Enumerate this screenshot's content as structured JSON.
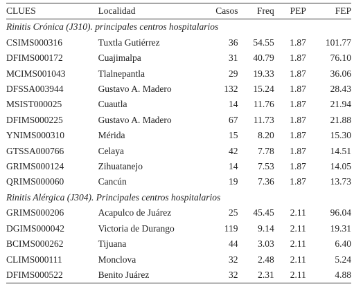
{
  "headers": {
    "clues": "CLUES",
    "localidad": "Localidad",
    "casos": "Casos",
    "freq": "Freq",
    "pep": "PEP",
    "fep": "FEP"
  },
  "sections": [
    {
      "title": "Rinitis Crónica (J310). principales centros hospitalarios",
      "rows": [
        {
          "clues": "CSIMS000316",
          "localidad": "Tuxtla Gutiérrez",
          "casos": "36",
          "freq": "54.55",
          "pep": "1.87",
          "fep": "101.77"
        },
        {
          "clues": "DFIMS000172",
          "localidad": "Cuajimalpa",
          "casos": "31",
          "freq": "40.79",
          "pep": "1.87",
          "fep": "76.10"
        },
        {
          "clues": "MCIMS001043",
          "localidad": "Tlalnepantla",
          "casos": "29",
          "freq": "19.33",
          "pep": "1.87",
          "fep": "36.06"
        },
        {
          "clues": "DFSSA003944",
          "localidad": "Gustavo A. Madero",
          "casos": "132",
          "freq": "15.24",
          "pep": "1.87",
          "fep": "28.43"
        },
        {
          "clues": "MSIST000025",
          "localidad": "Cuautla",
          "casos": "14",
          "freq": "11.76",
          "pep": "1.87",
          "fep": "21.94"
        },
        {
          "clues": "DFIMS000225",
          "localidad": "Gustavo A. Madero",
          "casos": "67",
          "freq": "11.73",
          "pep": "1.87",
          "fep": "21.88"
        },
        {
          "clues": "YNIMS000310",
          "localidad": "Mérida",
          "casos": "15",
          "freq": "8.20",
          "pep": "1.87",
          "fep": "15.30"
        },
        {
          "clues": "GTSSA000766",
          "localidad": "Celaya",
          "casos": "42",
          "freq": "7.78",
          "pep": "1.87",
          "fep": "14.51"
        },
        {
          "clues": "GRIMS000124",
          "localidad": "Zihuatanejo",
          "casos": "14",
          "freq": "7.53",
          "pep": "1.87",
          "fep": "14.05"
        },
        {
          "clues": "QRIMS000060",
          "localidad": "Cancún",
          "casos": "19",
          "freq": "7.36",
          "pep": "1.87",
          "fep": "13.73"
        }
      ]
    },
    {
      "title": "Rinitis Alérgica (J304). Principales centros hospitalarios",
      "rows": [
        {
          "clues": "GRIMS000206",
          "localidad": "Acapulco de Juárez",
          "casos": "25",
          "freq": "45.45",
          "pep": "2.11",
          "fep": "96.04"
        },
        {
          "clues": "DGIMS000042",
          "localidad": "Victoria de Durango",
          "casos": "119",
          "freq": "9.14",
          "pep": "2.11",
          "fep": "19.31"
        },
        {
          "clues": "BCIMS000262",
          "localidad": "Tijuana",
          "casos": "44",
          "freq": "3.03",
          "pep": "2.11",
          "fep": "6.40"
        },
        {
          "clues": "CLIMS000111",
          "localidad": "Monclova",
          "casos": "32",
          "freq": "2.48",
          "pep": "2.11",
          "fep": "5.24"
        },
        {
          "clues": "DFIMS000522",
          "localidad": "Benito Juárez",
          "casos": "32",
          "freq": "2.31",
          "pep": "2.11",
          "fep": "4.88"
        }
      ]
    }
  ]
}
